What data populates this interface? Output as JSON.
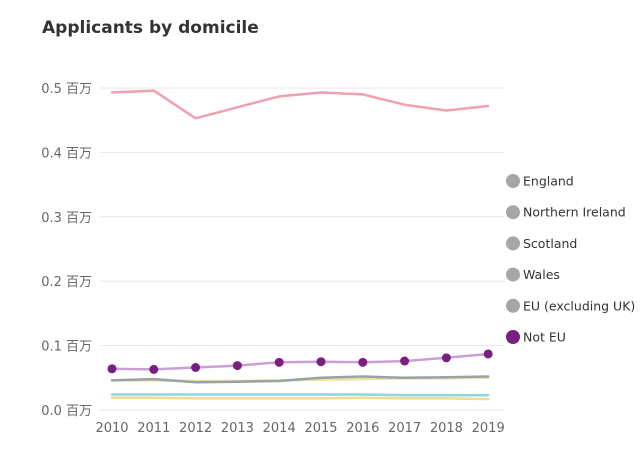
{
  "chart_data": {
    "type": "line",
    "title": "Applicants by domicile",
    "xlabel": "",
    "ylabel": "",
    "x": [
      "2010",
      "2011",
      "2012",
      "2013",
      "2014",
      "2015",
      "2016",
      "2017",
      "2018",
      "2019"
    ],
    "ylim": [
      0,
      0.5
    ],
    "yticks": [
      0.0,
      0.1,
      0.2,
      0.3,
      0.4,
      0.5
    ],
    "ytick_labels": [
      "0.0 百万",
      "0.1 百万",
      "0.2 百万",
      "0.3 百万",
      "0.4 百万",
      "0.5 百万"
    ],
    "grid": true,
    "legend_position": "right",
    "series": [
      {
        "name": "England",
        "color": "#f0a0b0",
        "legend_color": "#a6a6a6",
        "markers": false,
        "values": [
          0.493,
          0.496,
          0.453,
          0.47,
          0.487,
          0.493,
          0.49,
          0.474,
          0.465,
          0.472
        ]
      },
      {
        "name": "Northern Ireland",
        "color": "#f3dc8e",
        "legend_color": "#a6a6a6",
        "markers": false,
        "values": [
          0.019,
          0.019,
          0.018,
          0.018,
          0.018,
          0.018,
          0.019,
          0.018,
          0.018,
          0.017
        ]
      },
      {
        "name": "Scotland",
        "color": "#8ed7e0",
        "legend_color": "#a6a6a6",
        "markers": false,
        "values": [
          0.024,
          0.024,
          0.024,
          0.024,
          0.024,
          0.024,
          0.024,
          0.023,
          0.023,
          0.023
        ]
      },
      {
        "name": "Wales",
        "color": "#f0e1a0",
        "legend_color": "#a6a6a6",
        "markers": false,
        "values": [
          0.046,
          0.046,
          0.045,
          0.045,
          0.046,
          0.047,
          0.048,
          0.049,
          0.049,
          0.05
        ]
      },
      {
        "name": "EU (excluding UK)",
        "color": "#98a3a6",
        "legend_color": "#a6a6a6",
        "markers": false,
        "values": [
          0.046,
          0.048,
          0.043,
          0.044,
          0.045,
          0.05,
          0.052,
          0.05,
          0.051,
          0.052
        ]
      },
      {
        "name": "Not EU",
        "color": "#c9a0d6",
        "legend_color": "#7a1f82",
        "marker_color": "#7a1f82",
        "markers": true,
        "values": [
          0.064,
          0.063,
          0.066,
          0.069,
          0.074,
          0.075,
          0.074,
          0.076,
          0.081,
          0.087
        ]
      }
    ]
  }
}
